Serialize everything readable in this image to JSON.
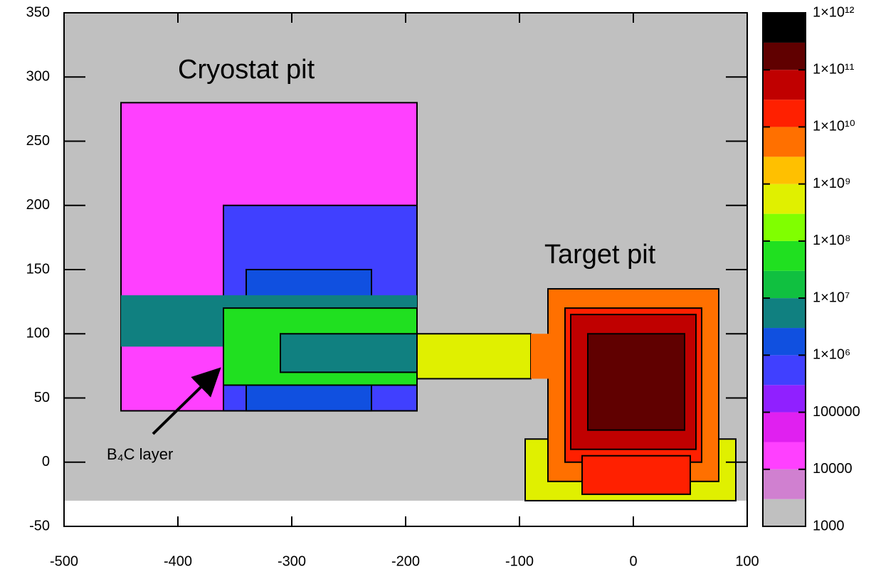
{
  "chart_data": {
    "type": "heatmap",
    "xlim": [
      -500,
      100
    ],
    "ylim": [
      -50,
      350
    ],
    "xticks": [
      -500,
      -400,
      -300,
      -200,
      -100,
      0,
      100
    ],
    "yticks": [
      -50,
      0,
      50,
      100,
      150,
      200,
      250,
      300,
      350
    ],
    "annotations": [
      "Cryostat pit",
      "Target pit",
      "B₄C layer"
    ],
    "regions": [
      {
        "x": [
          -500,
          100
        ],
        "y": [
          -30,
          350
        ],
        "value": 1500,
        "outlined": false
      },
      {
        "x": [
          -450,
          -190
        ],
        "y": [
          40,
          280
        ],
        "value": 20000,
        "outlined": true
      },
      {
        "x": [
          -360,
          -190
        ],
        "y": [
          40,
          200
        ],
        "value": 300000,
        "outlined": true
      },
      {
        "x": [
          -340,
          -230
        ],
        "y": [
          40,
          150
        ],
        "value": 2000000,
        "outlined": true
      },
      {
        "x": [
          -450,
          -190
        ],
        "y": [
          90,
          130
        ],
        "value": 5000000,
        "outlined": false
      },
      {
        "x": [
          -360,
          -190
        ],
        "y": [
          60,
          120
        ],
        "value": 50000000,
        "outlined": true
      },
      {
        "x": [
          -310,
          -190
        ],
        "y": [
          70,
          100
        ],
        "value": 5000000,
        "outlined": true
      },
      {
        "x": [
          -190,
          -90
        ],
        "y": [
          65,
          100
        ],
        "value": 500000000,
        "outlined": true
      },
      {
        "x": [
          -95,
          90
        ],
        "y": [
          -30,
          18
        ],
        "value": 500000000,
        "outlined": true
      },
      {
        "x": [
          -75,
          75
        ],
        "y": [
          -15,
          135
        ],
        "value": 5000000000,
        "outlined": true
      },
      {
        "x": [
          -90,
          -60
        ],
        "y": [
          65,
          100
        ],
        "value": 5000000000,
        "outlined": false
      },
      {
        "x": [
          -60,
          60
        ],
        "y": [
          0,
          120
        ],
        "value": 20000000000,
        "outlined": true
      },
      {
        "x": [
          -55,
          55
        ],
        "y": [
          10,
          115
        ],
        "value": 50000000000,
        "outlined": true
      },
      {
        "x": [
          -40,
          45
        ],
        "y": [
          25,
          100
        ],
        "value": 100000000000,
        "outlined": true
      },
      {
        "x": [
          -45,
          50
        ],
        "y": [
          -25,
          5
        ],
        "value": 20000000000,
        "outlined": true
      }
    ],
    "colorbar": {
      "scale": "log",
      "lim": [
        1000,
        1000000000000
      ],
      "ticks": [
        1000,
        10000,
        100000,
        {
          "value": 1000000,
          "label": "1×10⁶"
        },
        {
          "value": 10000000,
          "label": "1×10⁷"
        },
        {
          "value": 100000000,
          "label": "1×10⁸"
        },
        {
          "value": 1000000000,
          "label": "1×10⁹"
        },
        {
          "value": 10000000000,
          "label": "1×10¹⁰"
        },
        {
          "value": 100000000000,
          "label": "1×10¹¹"
        },
        {
          "value": 1000000000000,
          "label": "1×10¹²"
        }
      ],
      "bins": [
        1000,
        3000,
        10000,
        30000,
        100000,
        300000,
        1000000,
        3000000,
        10000000,
        30000000,
        100000000,
        300000000,
        1000000000,
        3000000000,
        10000000000,
        30000000000,
        100000000000,
        300000000000,
        1000000000000
      ],
      "colors": [
        "#c0c0c0",
        "#d080d0",
        "#ff40ff",
        "#e020f0",
        "#9020ff",
        "#4040ff",
        "#1050e0",
        "#108080",
        "#10c040",
        "#20e020",
        "#80ff00",
        "#e0f000",
        "#ffc000",
        "#ff7000",
        "#ff2000",
        "#c00000",
        "#600000",
        "#000000"
      ]
    }
  }
}
